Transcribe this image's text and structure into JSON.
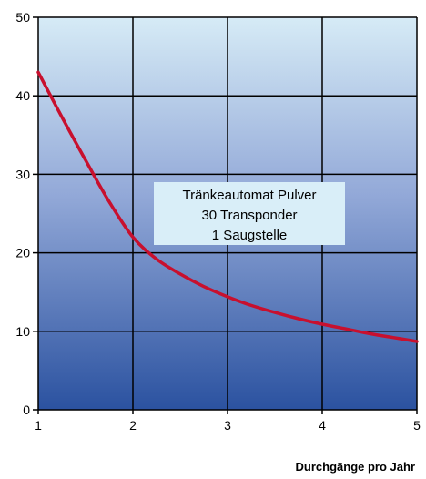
{
  "chart_data": {
    "type": "line",
    "xlabel": "Durchgänge pro Jahr",
    "ylabel": "",
    "xlim": [
      1,
      5
    ],
    "ylim": [
      0,
      50
    ],
    "x_ticks": [
      "1",
      "2",
      "3",
      "4",
      "5"
    ],
    "y_ticks": [
      "0",
      "10",
      "20",
      "30",
      "40",
      "50"
    ],
    "grid": true,
    "background": "vertical gradient light blue to dark blue",
    "series": [
      {
        "color": "#c8102e",
        "x": [
          1.0,
          1.25,
          1.5,
          1.75,
          2.0,
          2.25,
          2.5,
          2.75,
          3.0,
          3.25,
          3.5,
          3.75,
          4.0,
          4.25,
          4.5,
          4.75,
          5.0
        ],
        "y": [
          43.0,
          37.3,
          31.8,
          26.5,
          22.0,
          19.2,
          17.3,
          15.7,
          14.4,
          13.3,
          12.4,
          11.6,
          10.9,
          10.3,
          9.7,
          9.2,
          8.7
        ]
      }
    ],
    "annotation": {
      "lines": [
        "Tränkeautomat Pulver",
        "30 Transponder",
        "1 Saugstelle"
      ],
      "box_color": "#d9eef8"
    }
  }
}
